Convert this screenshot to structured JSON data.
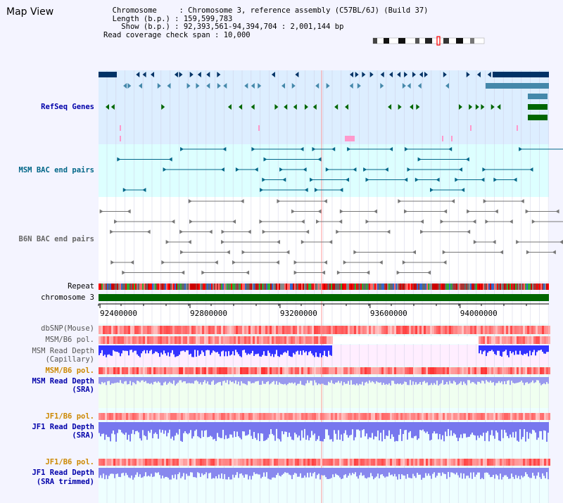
{
  "page_title": "Map View",
  "info": {
    "chromosome_label": "Chromosome",
    "chromosome_value": "Chromosome 3, reference assembly (C57BL/6J) (Build 37)",
    "length_label": "Length (b.p.)",
    "length_value": "159,599,783",
    "show_label": "Show (b.p.)",
    "show_value": "92,393,561-94,394,704 : 2,001,144 bp",
    "coverage_label": "Read coverage check span",
    "coverage_value": "10,000"
  },
  "tracks": {
    "refseq": "RefSeq Genes",
    "msm_bac": "MSM BAC end pairs",
    "b6n_bac": "B6N BAC end pairs",
    "repeat": "Repeat",
    "chromosome": "chromosome 3",
    "dbsnp": "dbSNP(Mouse)",
    "msm_b6_pol_1": "MSM/B6 pol.",
    "msm_depth_cap_1": "MSM Read Depth",
    "msm_depth_cap_2": "(Capillary)",
    "msm_b6_pol_2": "MSM/B6 pol.",
    "msm_depth_sra_1": "MSM Read Depth",
    "msm_depth_sra_2": "(SRA)",
    "jf1_b6_pol_1": "JF1/B6 pol.",
    "jf1_depth_sra_1": "JF1 Read Depth",
    "jf1_depth_sra_2": "(SRA)",
    "jf1_b6_pol_2": "JF1/B6 pol.",
    "jf1_depth_trim_1": "JF1 Read Depth",
    "jf1_depth_trim_2": "(SRA trimmed)"
  },
  "axis": {
    "ticks": [
      "92400000",
      "92800000",
      "93200000",
      "93600000",
      "94000000"
    ],
    "range": [
      92393561,
      94394704
    ]
  },
  "colors": {
    "refseq_bg": "#ddeeff",
    "refseq_dark": "#003366",
    "refseq_mid": "#4488aa",
    "refseq_green": "#006600",
    "refseq_pink": "#ff99cc",
    "msm_bac": "#006688",
    "b6n_bac": "#777777",
    "chromosome": "#006600",
    "label_blue": "#0000aa",
    "label_orange": "#cc8800",
    "depth_blue": "#3333ff",
    "snp_red": "#ff3333"
  }
}
